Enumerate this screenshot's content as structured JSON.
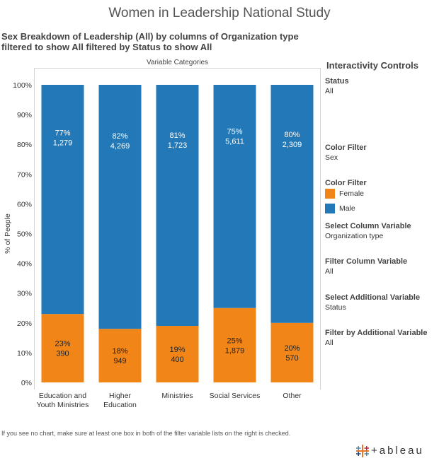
{
  "title": "Women in Leadership National Study",
  "subtitle": "Sex Breakdown of Leadership (All) by columns of Organization type filtered to show All  filtered by Status to show All",
  "chart_header": "Variable Categories",
  "footnote": "If you see no chart, make sure at least one box in both of the filter variable lists on the right is checked.",
  "logo_text": "+ableau",
  "controls": {
    "title": "Interactivity Controls",
    "status_label": "Status",
    "status_value": "All",
    "color_filter_label": "Color Filter",
    "color_filter_value": "Sex",
    "color_legend_label": "Color Filter",
    "legend": [
      {
        "label": "Female",
        "color": "#f28518"
      },
      {
        "label": "Male",
        "color": "#2378b7"
      }
    ],
    "select_column_label": "Select Column Variable",
    "select_column_value": "Organization type",
    "filter_column_label": "Filter Column Variable",
    "filter_column_value": "All",
    "select_additional_label": "Select Additional Variable",
    "select_additional_value": "Status",
    "filter_additional_label": "Filter by Additional Variable",
    "filter_additional_value": "All"
  },
  "chart_data": {
    "type": "bar",
    "stacked": true,
    "categories": [
      [
        "Education and",
        "Youth Ministries"
      ],
      [
        "Higher",
        "Education"
      ],
      [
        "Ministries"
      ],
      [
        "Social Services"
      ],
      [
        "Other"
      ]
    ],
    "ylabel": "% of People",
    "ylim": [
      0,
      100
    ],
    "yticks": [
      "0%",
      "10%",
      "20%",
      "30%",
      "40%",
      "50%",
      "60%",
      "70%",
      "80%",
      "90%",
      "100%"
    ],
    "series": [
      {
        "name": "Female",
        "color": "#f28518",
        "values": [
          23,
          18,
          19,
          25,
          20
        ],
        "labels": [
          "23%",
          "18%",
          "19%",
          "25%",
          "20%"
        ],
        "counts": [
          "390",
          "949",
          "400",
          "1,879",
          "570"
        ]
      },
      {
        "name": "Male",
        "color": "#2378b7",
        "values": [
          77,
          82,
          81,
          75,
          80
        ],
        "labels": [
          "77%",
          "82%",
          "81%",
          "75%",
          "80%"
        ],
        "counts": [
          "1,279",
          "4,269",
          "1,723",
          "5,611",
          "2,309"
        ]
      }
    ],
    "legend_position": "right"
  }
}
